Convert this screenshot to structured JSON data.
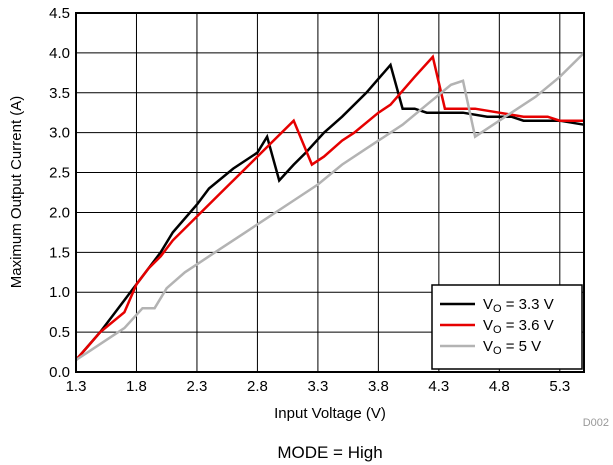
{
  "chart_data": {
    "type": "line",
    "xlabel": "Input Voltage (V)",
    "ylabel": "Maximum Output Current (A)",
    "xlim": [
      1.3,
      5.5
    ],
    "ylim": [
      0,
      4.5
    ],
    "x_ticks": [
      "1.3",
      "1.8",
      "2.3",
      "2.8",
      "3.3",
      "3.8",
      "4.3",
      "4.8",
      "5.3"
    ],
    "y_ticks": [
      "0.0",
      "0.5",
      "1.0",
      "1.5",
      "2.0",
      "2.5",
      "3.0",
      "3.5",
      "4.0",
      "4.5"
    ],
    "grid": true,
    "legend_position": "bottom-right",
    "series": [
      {
        "name_main": "V",
        "name_sub": "O",
        "name_rest": " = 3.3 V",
        "color": "#000000",
        "points": [
          [
            1.3,
            0.15
          ],
          [
            1.5,
            0.5
          ],
          [
            1.65,
            0.8
          ],
          [
            1.8,
            1.1
          ],
          [
            2.0,
            1.5
          ],
          [
            2.1,
            1.75
          ],
          [
            2.3,
            2.1
          ],
          [
            2.4,
            2.3
          ],
          [
            2.6,
            2.55
          ],
          [
            2.8,
            2.75
          ],
          [
            2.88,
            2.95
          ],
          [
            2.98,
            2.4
          ],
          [
            3.1,
            2.6
          ],
          [
            3.2,
            2.75
          ],
          [
            3.35,
            3.0
          ],
          [
            3.5,
            3.2
          ],
          [
            3.7,
            3.5
          ],
          [
            3.9,
            3.85
          ],
          [
            4.0,
            3.3
          ],
          [
            4.1,
            3.3
          ],
          [
            4.2,
            3.25
          ],
          [
            4.3,
            3.25
          ],
          [
            4.5,
            3.25
          ],
          [
            4.7,
            3.2
          ],
          [
            4.9,
            3.2
          ],
          [
            5.0,
            3.15
          ],
          [
            5.3,
            3.15
          ],
          [
            5.5,
            3.1
          ]
        ]
      },
      {
        "name_main": "V",
        "name_sub": "O",
        "name_rest": " = 3.6 V",
        "color": "#e60000",
        "points": [
          [
            1.3,
            0.15
          ],
          [
            1.5,
            0.5
          ],
          [
            1.7,
            0.75
          ],
          [
            1.8,
            1.1
          ],
          [
            1.9,
            1.3
          ],
          [
            2.0,
            1.45
          ],
          [
            2.1,
            1.65
          ],
          [
            2.3,
            1.95
          ],
          [
            2.5,
            2.25
          ],
          [
            2.7,
            2.55
          ],
          [
            2.9,
            2.85
          ],
          [
            3.1,
            3.15
          ],
          [
            3.25,
            2.6
          ],
          [
            3.35,
            2.7
          ],
          [
            3.5,
            2.9
          ],
          [
            3.6,
            3.0
          ],
          [
            3.8,
            3.25
          ],
          [
            3.9,
            3.35
          ],
          [
            4.1,
            3.7
          ],
          [
            4.25,
            3.95
          ],
          [
            4.35,
            3.3
          ],
          [
            4.5,
            3.3
          ],
          [
            4.6,
            3.3
          ],
          [
            4.8,
            3.25
          ],
          [
            5.0,
            3.2
          ],
          [
            5.2,
            3.2
          ],
          [
            5.3,
            3.15
          ],
          [
            5.5,
            3.15
          ]
        ]
      },
      {
        "name_main": "V",
        "name_sub": "O",
        "name_rest": " = 5 V",
        "color": "#b3b3b3",
        "points": [
          [
            1.3,
            0.15
          ],
          [
            1.4,
            0.25
          ],
          [
            1.55,
            0.4
          ],
          [
            1.7,
            0.55
          ],
          [
            1.85,
            0.8
          ],
          [
            1.95,
            0.8
          ],
          [
            2.05,
            1.05
          ],
          [
            2.2,
            1.25
          ],
          [
            2.3,
            1.35
          ],
          [
            2.5,
            1.55
          ],
          [
            2.7,
            1.75
          ],
          [
            2.9,
            1.95
          ],
          [
            3.1,
            2.15
          ],
          [
            3.3,
            2.35
          ],
          [
            3.5,
            2.6
          ],
          [
            3.7,
            2.8
          ],
          [
            3.9,
            3.0
          ],
          [
            4.0,
            3.1
          ],
          [
            4.2,
            3.35
          ],
          [
            4.4,
            3.6
          ],
          [
            4.5,
            3.65
          ],
          [
            4.6,
            2.95
          ],
          [
            4.7,
            3.05
          ],
          [
            4.9,
            3.25
          ],
          [
            5.1,
            3.45
          ],
          [
            5.3,
            3.7
          ],
          [
            5.5,
            4.0
          ]
        ]
      }
    ]
  },
  "figure_id": "D002",
  "caption": "MODE = High"
}
